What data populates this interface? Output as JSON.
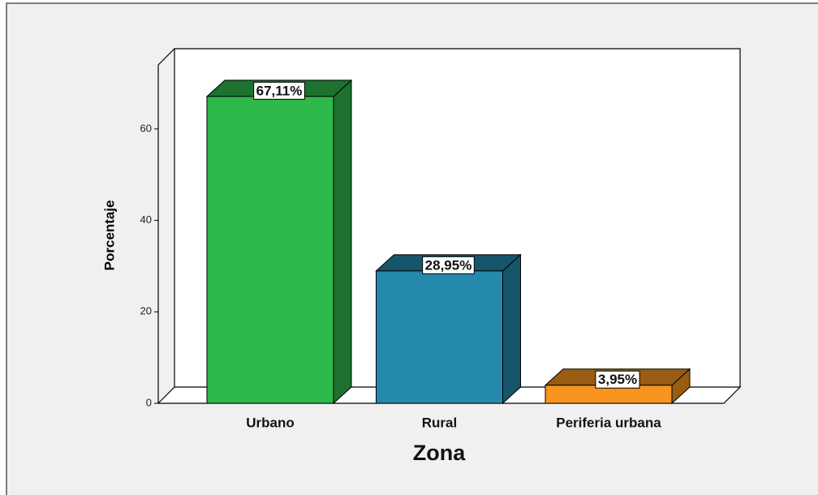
{
  "chart_data": {
    "type": "bar3d",
    "xlabel": "Zona",
    "ylabel": "Porcentaje",
    "categories": [
      "Urbano",
      "Rural",
      "Periferia urbana"
    ],
    "values": [
      67.11,
      28.95,
      3.95
    ],
    "value_labels": [
      "67,11%",
      "28,95%",
      "3,95%"
    ],
    "colors": [
      "#2db84a",
      "#2589ac",
      "#f7941d"
    ],
    "ylim": [
      0,
      74
    ],
    "yticks": [
      0,
      20,
      40,
      60
    ]
  }
}
